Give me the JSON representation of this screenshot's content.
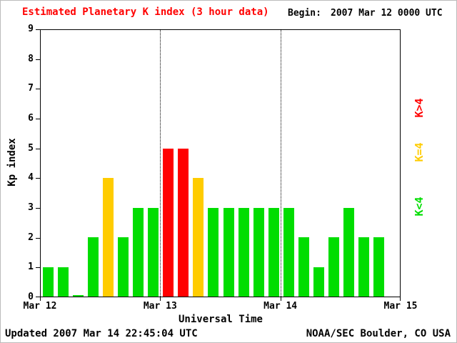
{
  "header": {
    "title": "Estimated Planetary K index (3 hour data)",
    "begin_label": "Begin:",
    "begin_value": "2007 Mar 12 0000 UTC"
  },
  "legend": {
    "high": "K>4",
    "mid": "K=4",
    "low": "K<4"
  },
  "footer": {
    "updated": "Updated 2007 Mar 14 22:45:04 UTC",
    "source": "NOAA/SEC Boulder, CO USA"
  },
  "colors": {
    "title": "#ff0000",
    "high": "#ff0000",
    "mid": "#ffcc00",
    "low": "#00dd00",
    "axis": "#000000",
    "background": "#ffffff"
  },
  "chart_data": {
    "type": "bar",
    "title": "Estimated Planetary K index (3 hour data)",
    "xlabel": "Universal Time",
    "ylabel": "Kp index",
    "ylim": [
      0,
      9
    ],
    "y_ticks": [
      0,
      1,
      2,
      3,
      4,
      5,
      6,
      7,
      8,
      9
    ],
    "x_ticks": [
      "Mar 12",
      "Mar 13",
      "Mar 14",
      "Mar 15"
    ],
    "x_range_hours": 72,
    "bar_period_hours": 3,
    "day_boundaries_hours": [
      24,
      48
    ],
    "values": [
      1,
      1,
      0,
      2,
      4,
      2,
      3,
      3,
      5,
      5,
      4,
      3,
      3,
      3,
      3,
      3,
      3,
      2,
      1,
      2,
      3,
      2,
      2
    ],
    "color_rules": {
      "low": {
        "condition": "K<4",
        "color": "#00dd00"
      },
      "mid": {
        "condition": "K=4",
        "color": "#ffcc00"
      },
      "high": {
        "condition": "K>4",
        "color": "#ff0000"
      }
    },
    "legend_position": "right",
    "grid": "dotted vertical lines at day boundaries"
  }
}
